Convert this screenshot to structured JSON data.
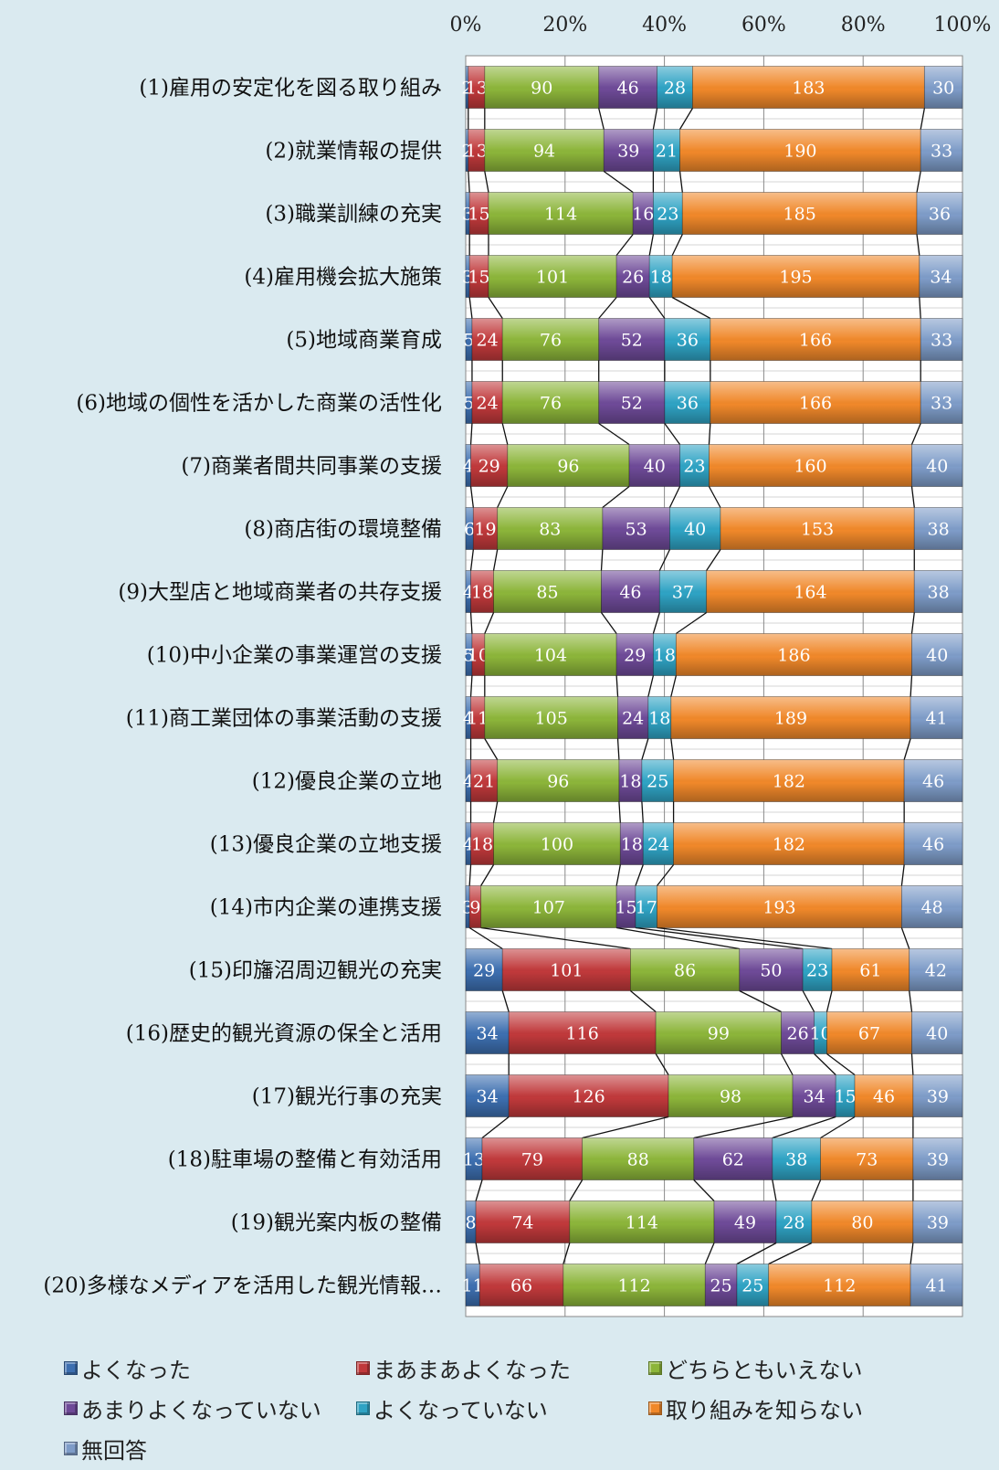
{
  "chart_data": {
    "type": "bar",
    "orientation": "horizontal",
    "stacked": "percent",
    "categories": [
      "(1)雇用の安定化を図る取り組み",
      "(2)就業情報の提供",
      "(3)職業訓練の充実",
      "(4)雇用機会拡大施策",
      "(5)地域商業育成",
      "(6)地域の個性を活かした商業の活性化",
      "(7)商業者間共同事業の支援",
      "(8)商店街の環境整備",
      "(9)大型店と地域商業者の共存支援",
      "(10)中小企業の事業運営の支援",
      "(11)商工業団体の事業活動の支援",
      "(12)優良企業の立地",
      "(13)優良企業の立地支援",
      "(14)市内企業の連携支援",
      "(15)印旛沼周辺観光の充実",
      "(16)歴史的観光資源の保全と活用",
      "(17)観光行事の充実",
      "(18)駐車場の整備と有効活用",
      "(19)観光案内板の整備",
      "(20)多様なメディアを活用した観光情報…"
    ],
    "series": [
      {
        "name": "よくなった",
        "color": "#3d6fb0",
        "values": [
          2,
          2,
          3,
          3,
          5,
          5,
          4,
          6,
          4,
          5,
          4,
          4,
          4,
          3,
          29,
          34,
          34,
          13,
          8,
          11
        ]
      },
      {
        "name": "まあまあよくなった",
        "color": "#c0393b",
        "values": [
          13,
          13,
          15,
          15,
          24,
          24,
          29,
          19,
          18,
          10,
          11,
          21,
          18,
          9,
          101,
          116,
          126,
          79,
          74,
          66
        ]
      },
      {
        "name": "どちらともいえない",
        "color": "#8cb53a",
        "values": [
          90,
          94,
          114,
          101,
          76,
          76,
          96,
          83,
          85,
          104,
          105,
          96,
          100,
          107,
          86,
          99,
          98,
          88,
          114,
          112
        ]
      },
      {
        "name": "あまりよくなっていない",
        "color": "#6e4a98",
        "values": [
          46,
          39,
          16,
          26,
          52,
          52,
          40,
          53,
          46,
          29,
          24,
          18,
          18,
          15,
          50,
          26,
          34,
          62,
          49,
          25
        ]
      },
      {
        "name": "よくなっていない",
        "color": "#2fa3c4",
        "values": [
          28,
          21,
          23,
          18,
          36,
          36,
          23,
          40,
          37,
          18,
          18,
          25,
          24,
          17,
          23,
          10,
          15,
          38,
          28,
          25
        ]
      },
      {
        "name": "取り組みを知らない",
        "color": "#f0882a",
        "values": [
          183,
          190,
          185,
          195,
          166,
          166,
          160,
          153,
          164,
          186,
          189,
          182,
          182,
          193,
          61,
          67,
          46,
          73,
          80,
          112
        ]
      },
      {
        "name": "無回答",
        "color": "#7e9cc8",
        "values": [
          30,
          33,
          36,
          34,
          33,
          33,
          40,
          38,
          38,
          40,
          41,
          46,
          46,
          48,
          42,
          40,
          39,
          39,
          39,
          41
        ]
      }
    ],
    "x_ticks": [
      "0%",
      "20%",
      "40%",
      "60%",
      "80%",
      "100%"
    ],
    "xlim": [
      0,
      100
    ],
    "grid": true,
    "series_lines": true,
    "legend_position": "bottom"
  }
}
